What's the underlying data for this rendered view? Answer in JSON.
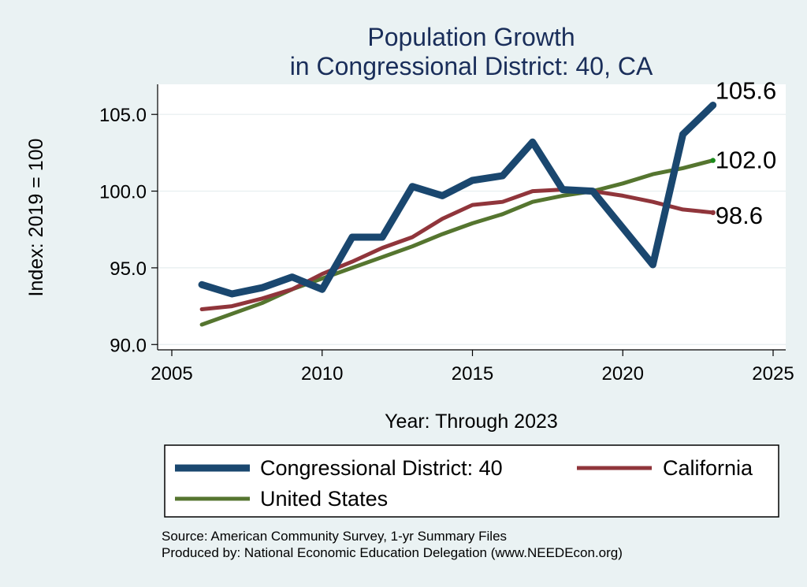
{
  "chart_data": {
    "type": "line",
    "title": [
      "Population Growth",
      "in Congressional District: 40, CA"
    ],
    "xlabel": "Year: Through 2023",
    "ylabel": "Index: 2019 = 100",
    "xlim": [
      2005,
      2025
    ],
    "ylim": [
      89.5,
      106.5
    ],
    "xticks": [
      2005,
      2010,
      2015,
      2020,
      2025
    ],
    "yticks": [
      90.0,
      95.0,
      100.0,
      105.0
    ],
    "ytick_labels": [
      "90.0",
      "95.0",
      "100.0",
      "105.0"
    ],
    "grid": true,
    "x": [
      2006,
      2007,
      2008,
      2009,
      2010,
      2011,
      2012,
      2013,
      2014,
      2015,
      2016,
      2017,
      2018,
      2019,
      2020,
      2021,
      2022,
      2023
    ],
    "series": [
      {
        "name": "Congressional District: 40",
        "color": "#1a476f",
        "values": [
          93.9,
          93.3,
          93.7,
          94.4,
          93.6,
          97.0,
          97.0,
          100.3,
          99.7,
          100.7,
          101.0,
          103.2,
          100.1,
          100.0,
          97.6,
          95.2,
          103.7,
          105.6
        ],
        "end_label": "105.6"
      },
      {
        "name": "California",
        "color": "#90353b",
        "values": [
          92.3,
          92.5,
          93.0,
          93.6,
          94.6,
          95.4,
          96.3,
          97.0,
          98.2,
          99.1,
          99.3,
          100.0,
          100.1,
          100.0,
          99.7,
          99.3,
          98.8,
          98.6
        ],
        "end_label": "98.6"
      },
      {
        "name": "United States",
        "color": "#55752f",
        "values": [
          91.3,
          92.0,
          92.7,
          93.6,
          94.3,
          95.0,
          95.7,
          96.4,
          97.2,
          97.9,
          98.5,
          99.3,
          99.7,
          100.0,
          100.5,
          101.1,
          101.5,
          102.0
        ],
        "end_label": "102.0"
      }
    ],
    "legend": {
      "placement": "bottom",
      "entries": [
        "Congressional District: 40",
        "California",
        "United States"
      ]
    }
  },
  "source_lines": [
    "Source: American Community Survey, 1-yr Summary Files",
    "Produced by: National Economic Education Delegation (www.NEEDEcon.org)"
  ]
}
